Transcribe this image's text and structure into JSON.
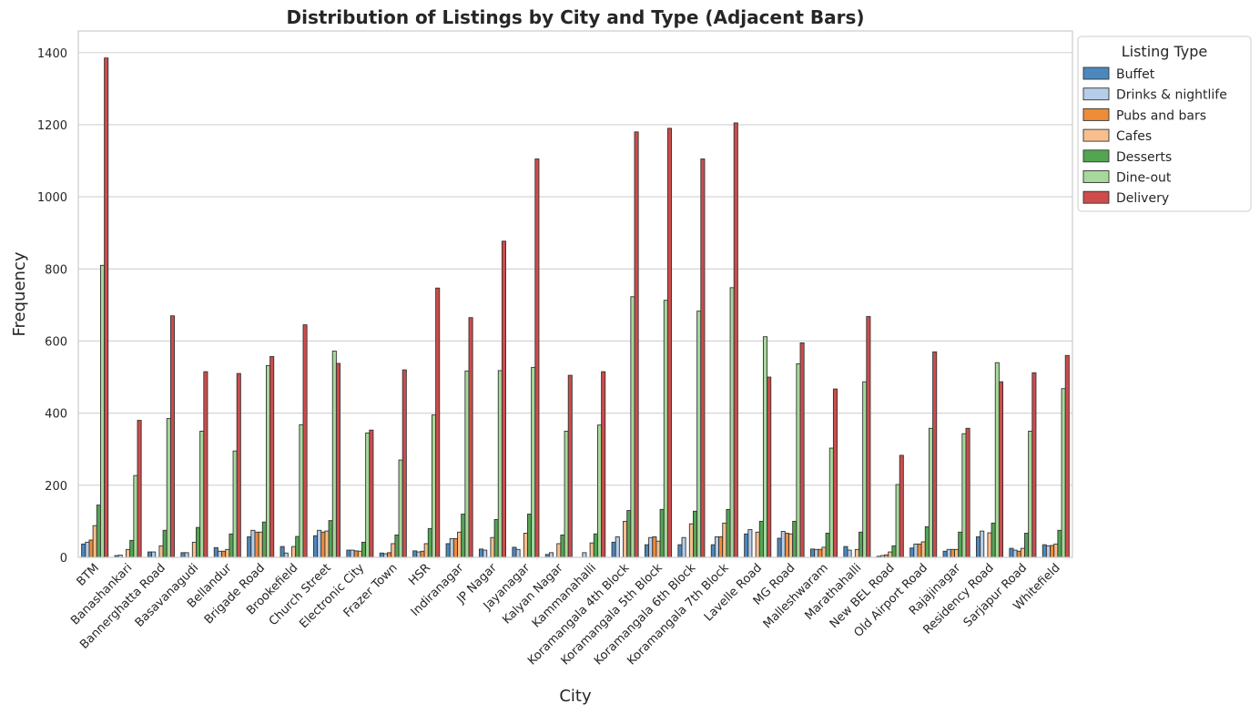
{
  "chart_data": {
    "type": "bar",
    "title": "Distribution of Listings by City and Type (Adjacent Bars)",
    "xlabel": "City",
    "ylabel": "Frequency",
    "ylim": [
      0,
      1460
    ],
    "yticks": [
      0,
      200,
      400,
      600,
      800,
      1000,
      1200,
      1400
    ],
    "grid": "horizontal",
    "legend": {
      "title": "Listing Type",
      "placement": "upper-right-outside"
    },
    "categories": [
      "BTM",
      "Banashankari",
      "Bannerghatta Road",
      "Basavanagudi",
      "Bellandur",
      "Brigade Road",
      "Brookefield",
      "Church Street",
      "Electronic City",
      "Frazer Town",
      "HSR",
      "Indiranagar",
      "JP Nagar",
      "Jayanagar",
      "Kalyan Nagar",
      "Kammanahalli",
      "Koramangala 4th Block",
      "Koramangala 5th Block",
      "Koramangala 6th Block",
      "Koramangala 7th Block",
      "Lavelle Road",
      "MG Road",
      "Malleshwaram",
      "Marathahalli",
      "New BEL Road",
      "Old Airport Road",
      "Rajajinagar",
      "Residency Road",
      "Sarjapur Road",
      "Whitefield"
    ],
    "series": [
      {
        "name": "Buffet",
        "color": "#4c88bd",
        "values": [
          37,
          5,
          15,
          13,
          27,
          57,
          30,
          60,
          20,
          12,
          18,
          38,
          23,
          28,
          8,
          0,
          42,
          35,
          35,
          35,
          65,
          53,
          23,
          30,
          3,
          26,
          17,
          57,
          25,
          35
        ]
      },
      {
        "name": "Drinks & nightlife",
        "color": "#b6cde8",
        "values": [
          42,
          6,
          15,
          13,
          17,
          75,
          12,
          75,
          20,
          10,
          15,
          52,
          20,
          22,
          13,
          13,
          57,
          55,
          55,
          57,
          77,
          72,
          22,
          20,
          5,
          37,
          22,
          73,
          20,
          32
        ]
      },
      {
        "name": "Pubs and bars",
        "color": "#ef8c37",
        "values": [
          48,
          0,
          0,
          0,
          17,
          70,
          0,
          70,
          18,
          13,
          17,
          52,
          0,
          0,
          0,
          0,
          0,
          57,
          0,
          57,
          0,
          67,
          22,
          0,
          7,
          37,
          22,
          0,
          17,
          33
        ]
      },
      {
        "name": "Cafes",
        "color": "#f7bf8e",
        "values": [
          88,
          22,
          32,
          42,
          22,
          70,
          30,
          73,
          17,
          38,
          38,
          70,
          55,
          67,
          38,
          40,
          100,
          45,
          93,
          95,
          70,
          65,
          28,
          22,
          15,
          43,
          22,
          68,
          25,
          37
        ]
      },
      {
        "name": "Desserts",
        "color": "#53a552",
        "values": [
          145,
          47,
          75,
          83,
          65,
          98,
          58,
          102,
          42,
          62,
          80,
          120,
          105,
          120,
          62,
          65,
          130,
          133,
          128,
          133,
          100,
          100,
          67,
          70,
          32,
          85,
          70,
          95,
          67,
          75
        ]
      },
      {
        "name": "Dine-out",
        "color": "#a6d99b",
        "values": [
          810,
          227,
          385,
          350,
          295,
          532,
          368,
          572,
          345,
          270,
          395,
          517,
          518,
          527,
          350,
          367,
          723,
          713,
          683,
          748,
          612,
          537,
          303,
          487,
          202,
          358,
          343,
          540,
          350,
          468
        ]
      },
      {
        "name": "Delivery",
        "color": "#cd4c4c",
        "values": [
          1385,
          380,
          670,
          515,
          510,
          557,
          645,
          538,
          353,
          520,
          747,
          665,
          877,
          1105,
          505,
          515,
          1180,
          1190,
          1105,
          1205,
          500,
          595,
          467,
          668,
          283,
          570,
          358,
          487,
          512,
          560
        ]
      }
    ]
  }
}
